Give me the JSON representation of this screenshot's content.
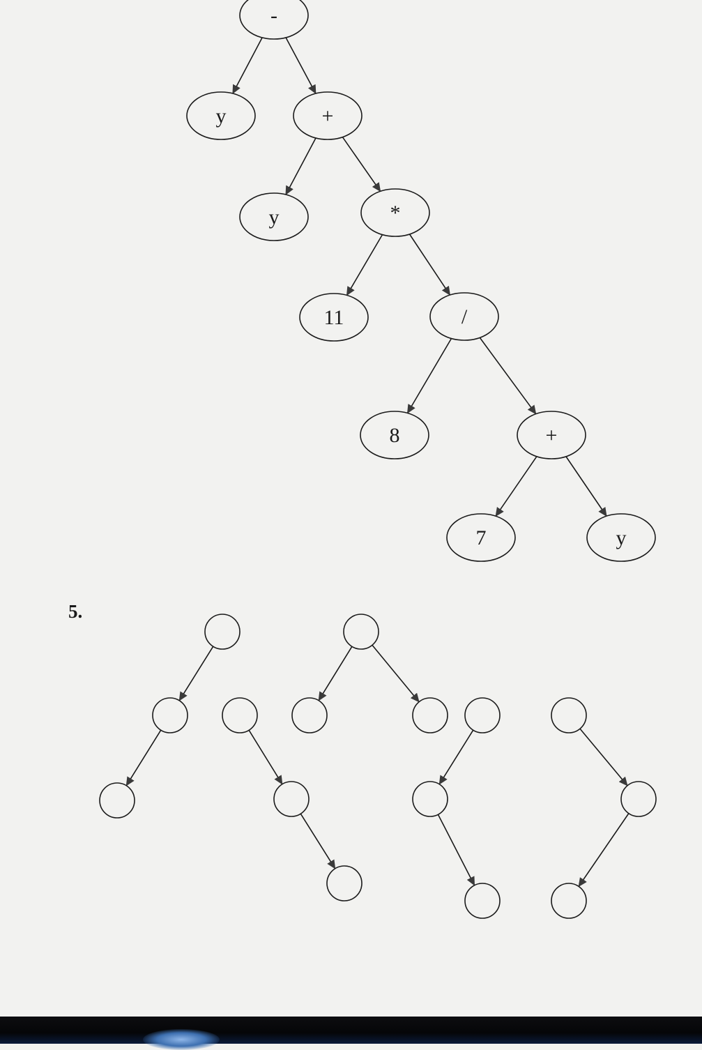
{
  "expression_tree": {
    "nodes": [
      {
        "id": "n1",
        "label": "-"
      },
      {
        "id": "n2",
        "label": "y"
      },
      {
        "id": "n3",
        "label": "+"
      },
      {
        "id": "n4",
        "label": "y"
      },
      {
        "id": "n5",
        "label": "*"
      },
      {
        "id": "n6",
        "label": "11"
      },
      {
        "id": "n7",
        "label": "/"
      },
      {
        "id": "n8",
        "label": "8"
      },
      {
        "id": "n9",
        "label": "+"
      },
      {
        "id": "n10",
        "label": "7"
      },
      {
        "id": "n11",
        "label": "y"
      }
    ],
    "edges": [
      [
        "n1",
        "n2"
      ],
      [
        "n1",
        "n3"
      ],
      [
        "n3",
        "n4"
      ],
      [
        "n3",
        "n5"
      ],
      [
        "n5",
        "n6"
      ],
      [
        "n5",
        "n7"
      ],
      [
        "n7",
        "n8"
      ],
      [
        "n7",
        "n9"
      ],
      [
        "n9",
        "n10"
      ],
      [
        "n9",
        "n11"
      ]
    ]
  },
  "problem5": {
    "number": "5.",
    "trees": [
      {
        "nodes": [
          "a1",
          "a2",
          "a3"
        ],
        "edges": [
          [
            "a1",
            "a2"
          ],
          [
            "a2",
            "a3"
          ]
        ]
      },
      {
        "nodes": [
          "b1",
          "b2",
          "b3"
        ],
        "edges": [
          [
            "b1",
            "b2"
          ],
          [
            "b2",
            "b3"
          ]
        ]
      },
      {
        "nodes": [
          "c1",
          "c2",
          "c3"
        ],
        "edges": [
          [
            "c1",
            "c2"
          ],
          [
            "c1",
            "c3"
          ]
        ]
      },
      {
        "nodes": [
          "d1",
          "d2",
          "d3"
        ],
        "edges": [
          [
            "d1",
            "d2"
          ],
          [
            "d2",
            "d3"
          ]
        ]
      },
      {
        "nodes": [
          "e1",
          "e2",
          "e3"
        ],
        "edges": [
          [
            "e1",
            "e2"
          ],
          [
            "e2",
            "e3"
          ]
        ]
      }
    ]
  },
  "colors": {
    "ink": "#1a1a1a",
    "paper": "#f2f2f0",
    "arrow": "#3a3a3a"
  }
}
